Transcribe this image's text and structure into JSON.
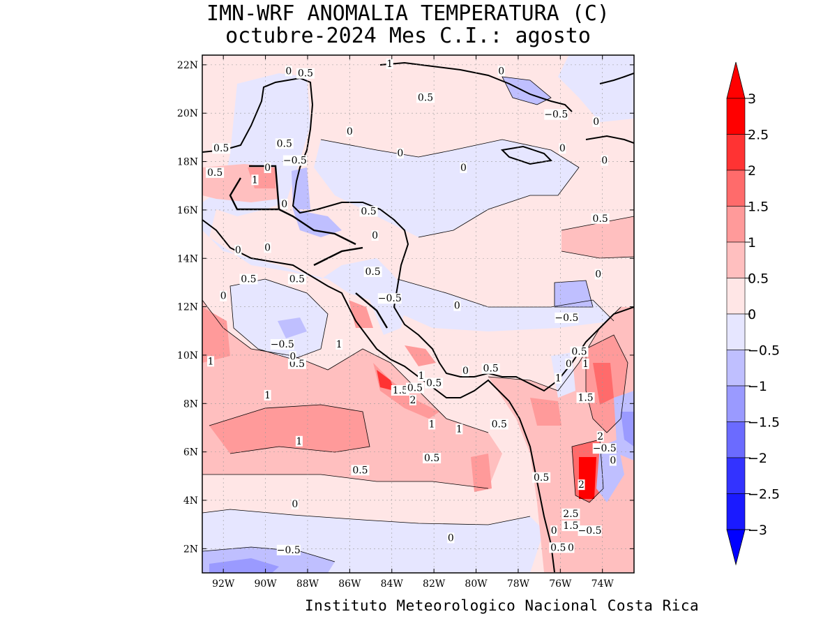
{
  "title_line1": "IMN-WRF  ANOMALIA TEMPERATURA (C)",
  "title_line2": "octubre-2024 Mes C.I.: agosto",
  "credit": "Instituto Meteorologico Nacional Costa Rica",
  "map": {
    "region": "Central America",
    "lat_range": [
      1,
      22.4
    ],
    "lon_range": [
      -93,
      -72.5
    ],
    "lat_ticks": [
      "22N",
      "20N",
      "18N",
      "16N",
      "14N",
      "12N",
      "10N",
      "8N",
      "6N",
      "4N",
      "2N"
    ],
    "lon_ticks": [
      "92W",
      "90W",
      "88W",
      "86W",
      "84W",
      "82W",
      "80W",
      "78W",
      "76W",
      "74W"
    ]
  },
  "colorbar": {
    "labels": [
      "3",
      "2.5",
      "2",
      "1.5",
      "1",
      "0.5",
      "0",
      "−0.5",
      "−1",
      "−1.5",
      "−2",
      "−2.5",
      "−3"
    ],
    "colors": [
      "#ff0000",
      "#ff3333",
      "#ff6b6b",
      "#ff9a9a",
      "#ffbfbf",
      "#ffe6e6",
      "#e6e6ff",
      "#bfbfff",
      "#9a9aff",
      "#6b6bff",
      "#3333ff",
      "#1a1aff"
    ],
    "arrow_top": "#ff0000",
    "arrow_bottom": "#0000ff"
  },
  "contour_labels": [
    {
      "t": "0",
      "lon": -88.9,
      "lat": 21.7
    },
    {
      "t": "0.5",
      "lon": -88.1,
      "lat": 21.6
    },
    {
      "t": "1",
      "lon": -84.1,
      "lat": 22.0
    },
    {
      "t": "0.5",
      "lon": -82.4,
      "lat": 20.6
    },
    {
      "t": "0",
      "lon": -78.8,
      "lat": 21.7
    },
    {
      "t": "−0.5",
      "lon": -76.2,
      "lat": 19.9
    },
    {
      "t": "0",
      "lon": -74.3,
      "lat": 19.6
    },
    {
      "t": "0",
      "lon": -86.0,
      "lat": 19.2
    },
    {
      "t": "0.5",
      "lon": -92.1,
      "lat": 18.5
    },
    {
      "t": "0.5",
      "lon": -89.1,
      "lat": 18.7
    },
    {
      "t": "−0.5",
      "lon": -88.6,
      "lat": 18.0
    },
    {
      "t": "0",
      "lon": -83.6,
      "lat": 18.3
    },
    {
      "t": "0",
      "lon": -75.9,
      "lat": 18.5
    },
    {
      "t": "0",
      "lon": -73.9,
      "lat": 18.0
    },
    {
      "t": "0",
      "lon": -80.6,
      "lat": 17.7
    },
    {
      "t": "0.5",
      "lon": -92.4,
      "lat": 17.5
    },
    {
      "t": "1",
      "lon": -90.5,
      "lat": 17.2
    },
    {
      "t": "0",
      "lon": -89.9,
      "lat": 17.7
    },
    {
      "t": "0",
      "lon": -89.1,
      "lat": 16.2
    },
    {
      "t": "0.5",
      "lon": -85.1,
      "lat": 15.9
    },
    {
      "t": "0.5",
      "lon": -74.1,
      "lat": 15.6
    },
    {
      "t": "0",
      "lon": -84.8,
      "lat": 14.9
    },
    {
      "t": "0",
      "lon": -91.3,
      "lat": 14.3
    },
    {
      "t": "0",
      "lon": -89.9,
      "lat": 14.4
    },
    {
      "t": "0.5",
      "lon": -84.9,
      "lat": 13.4
    },
    {
      "t": "0.5",
      "lon": -90.8,
      "lat": 13.1
    },
    {
      "t": "0.5",
      "lon": -88.5,
      "lat": 13.1
    },
    {
      "t": "0",
      "lon": -74.2,
      "lat": 13.3
    },
    {
      "t": "0",
      "lon": -92.0,
      "lat": 12.4
    },
    {
      "t": "−0.5",
      "lon": -84.1,
      "lat": 12.3
    },
    {
      "t": "0",
      "lon": -80.9,
      "lat": 12.0
    },
    {
      "t": "−0.5",
      "lon": -75.7,
      "lat": 11.5
    },
    {
      "t": "1",
      "lon": -86.5,
      "lat": 10.4
    },
    {
      "t": "−0.5",
      "lon": -89.2,
      "lat": 10.4
    },
    {
      "t": "0.5",
      "lon": -75.1,
      "lat": 10.1
    },
    {
      "t": "1",
      "lon": -92.6,
      "lat": 9.7
    },
    {
      "t": "0.5",
      "lon": -88.5,
      "lat": 9.6
    },
    {
      "t": "0",
      "lon": -88.7,
      "lat": 9.9
    },
    {
      "t": "0",
      "lon": -75.6,
      "lat": 9.6
    },
    {
      "t": "1",
      "lon": -74.8,
      "lat": 9.6
    },
    {
      "t": "1",
      "lon": -82.6,
      "lat": 9.1
    },
    {
      "t": "0",
      "lon": -80.5,
      "lat": 9.3
    },
    {
      "t": "0.5",
      "lon": -79.3,
      "lat": 9.4
    },
    {
      "t": "1",
      "lon": -76.1,
      "lat": 9.0
    },
    {
      "t": "0.5",
      "lon": -82.0,
      "lat": 8.8
    },
    {
      "t": "1.5",
      "lon": -83.6,
      "lat": 8.5
    },
    {
      "t": "0.5",
      "lon": -82.9,
      "lat": 8.6
    },
    {
      "t": "2",
      "lon": -83.0,
      "lat": 8.1
    },
    {
      "t": "1.5",
      "lon": -74.8,
      "lat": 8.2
    },
    {
      "t": "1",
      "lon": -89.9,
      "lat": 8.3
    },
    {
      "t": "1",
      "lon": -82.1,
      "lat": 7.1
    },
    {
      "t": "1",
      "lon": -80.8,
      "lat": 6.9
    },
    {
      "t": "0.5",
      "lon": -78.9,
      "lat": 7.1
    },
    {
      "t": "2",
      "lon": -74.1,
      "lat": 6.6
    },
    {
      "t": "−0.5",
      "lon": -73.9,
      "lat": 6.1
    },
    {
      "t": "1",
      "lon": -88.4,
      "lat": 6.4
    },
    {
      "t": "0",
      "lon": -73.5,
      "lat": 5.6
    },
    {
      "t": "0.5",
      "lon": -82.1,
      "lat": 5.7
    },
    {
      "t": "0.5",
      "lon": -85.5,
      "lat": 5.2
    },
    {
      "t": "0.5",
      "lon": -76.9,
      "lat": 4.9
    },
    {
      "t": "2",
      "lon": -75.0,
      "lat": 4.6
    },
    {
      "t": "0",
      "lon": -88.6,
      "lat": 3.8
    },
    {
      "t": "2.5",
      "lon": -75.5,
      "lat": 3.4
    },
    {
      "t": "1.5",
      "lon": -75.5,
      "lat": 2.9
    },
    {
      "t": "0",
      "lon": -76.3,
      "lat": 2.7
    },
    {
      "t": "−0.5",
      "lon": -74.6,
      "lat": 2.7
    },
    {
      "t": "0",
      "lon": -81.2,
      "lat": 2.4
    },
    {
      "t": "0.5",
      "lon": -76.1,
      "lat": 2.0
    },
    {
      "t": "0",
      "lon": -75.5,
      "lat": 2.0
    },
    {
      "t": "−0.5",
      "lon": -88.9,
      "lat": 1.9
    }
  ]
}
